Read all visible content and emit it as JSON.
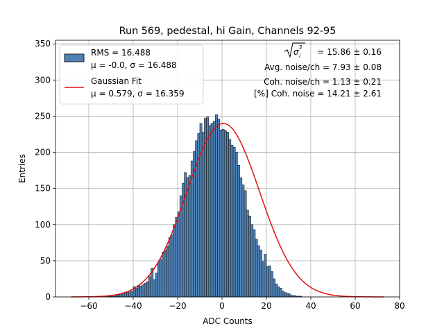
{
  "chart_data": {
    "type": "bar",
    "title": "Run 569, pedestal, hi Gain, Channels 92-95",
    "xlabel": "ADC Counts",
    "ylabel": "Entries",
    "xlim": [
      -75,
      80
    ],
    "ylim": [
      0,
      355
    ],
    "xticks": [
      -60,
      -40,
      -20,
      0,
      20,
      40,
      60,
      80
    ],
    "yticks": [
      0,
      50,
      100,
      150,
      200,
      250,
      300,
      350
    ],
    "grid": true,
    "legend_position": "top-left",
    "legend": [
      {
        "label_line1": "RMS = 16.488",
        "label_line2": "μ = -0.0, σ = 16.488",
        "kind": "histogram"
      },
      {
        "label_line1": "Gaussian Fit",
        "label_line2": "μ = 0.579, σ = 16.359",
        "kind": "line"
      }
    ],
    "annotations": {
      "sigma_label": "= 15.86 ± 0.16",
      "avg_noise": "Avg. noise/ch = 7.93 ± 0.08",
      "coh_noise": "Coh. noise/ch = 1.13 ± 0.21",
      "coh_noise_pct": "[%] Coh. noise = 14.21 ± 2.61"
    },
    "histogram": {
      "bin_width": 1,
      "bin_start": -68,
      "values": [
        0,
        0,
        0,
        0,
        0,
        0,
        0,
        0,
        0,
        0,
        0,
        0,
        0,
        0,
        0,
        0,
        1,
        1,
        1,
        1,
        2,
        3,
        4,
        5,
        5,
        6,
        7,
        8,
        14,
        12,
        16,
        15,
        17,
        19,
        21,
        28,
        40,
        24,
        33,
        48,
        52,
        62,
        65,
        70,
        82,
        86,
        100,
        110,
        118,
        140,
        157,
        172,
        165,
        168,
        188,
        201,
        216,
        226,
        240,
        228,
        247,
        249,
        237,
        240,
        243,
        252,
        246,
        231,
        232,
        230,
        228,
        218,
        210,
        207,
        200,
        182,
        165,
        155,
        147,
        120,
        112,
        100,
        93,
        80,
        71,
        65,
        49,
        59,
        42,
        43,
        35,
        25,
        18,
        14,
        12,
        8,
        6,
        5,
        4,
        2,
        2,
        1,
        1,
        1,
        0,
        0,
        0,
        0,
        0,
        0,
        0,
        0,
        0,
        0,
        0,
        0,
        0,
        0,
        0,
        0,
        0,
        0,
        0,
        0,
        0,
        0,
        0,
        0,
        0,
        0,
        0,
        0,
        0,
        0,
        0,
        0,
        0,
        0,
        0,
        0,
        0,
        0
      ]
    },
    "fit": {
      "mu": 0.579,
      "sigma": 16.359,
      "amplitude": 240
    },
    "colors": {
      "bar_fill": "#4f81b4",
      "bar_edge": "#1a1a1a",
      "fit_line": "#e01010",
      "grid": "#b0b0b0"
    }
  }
}
